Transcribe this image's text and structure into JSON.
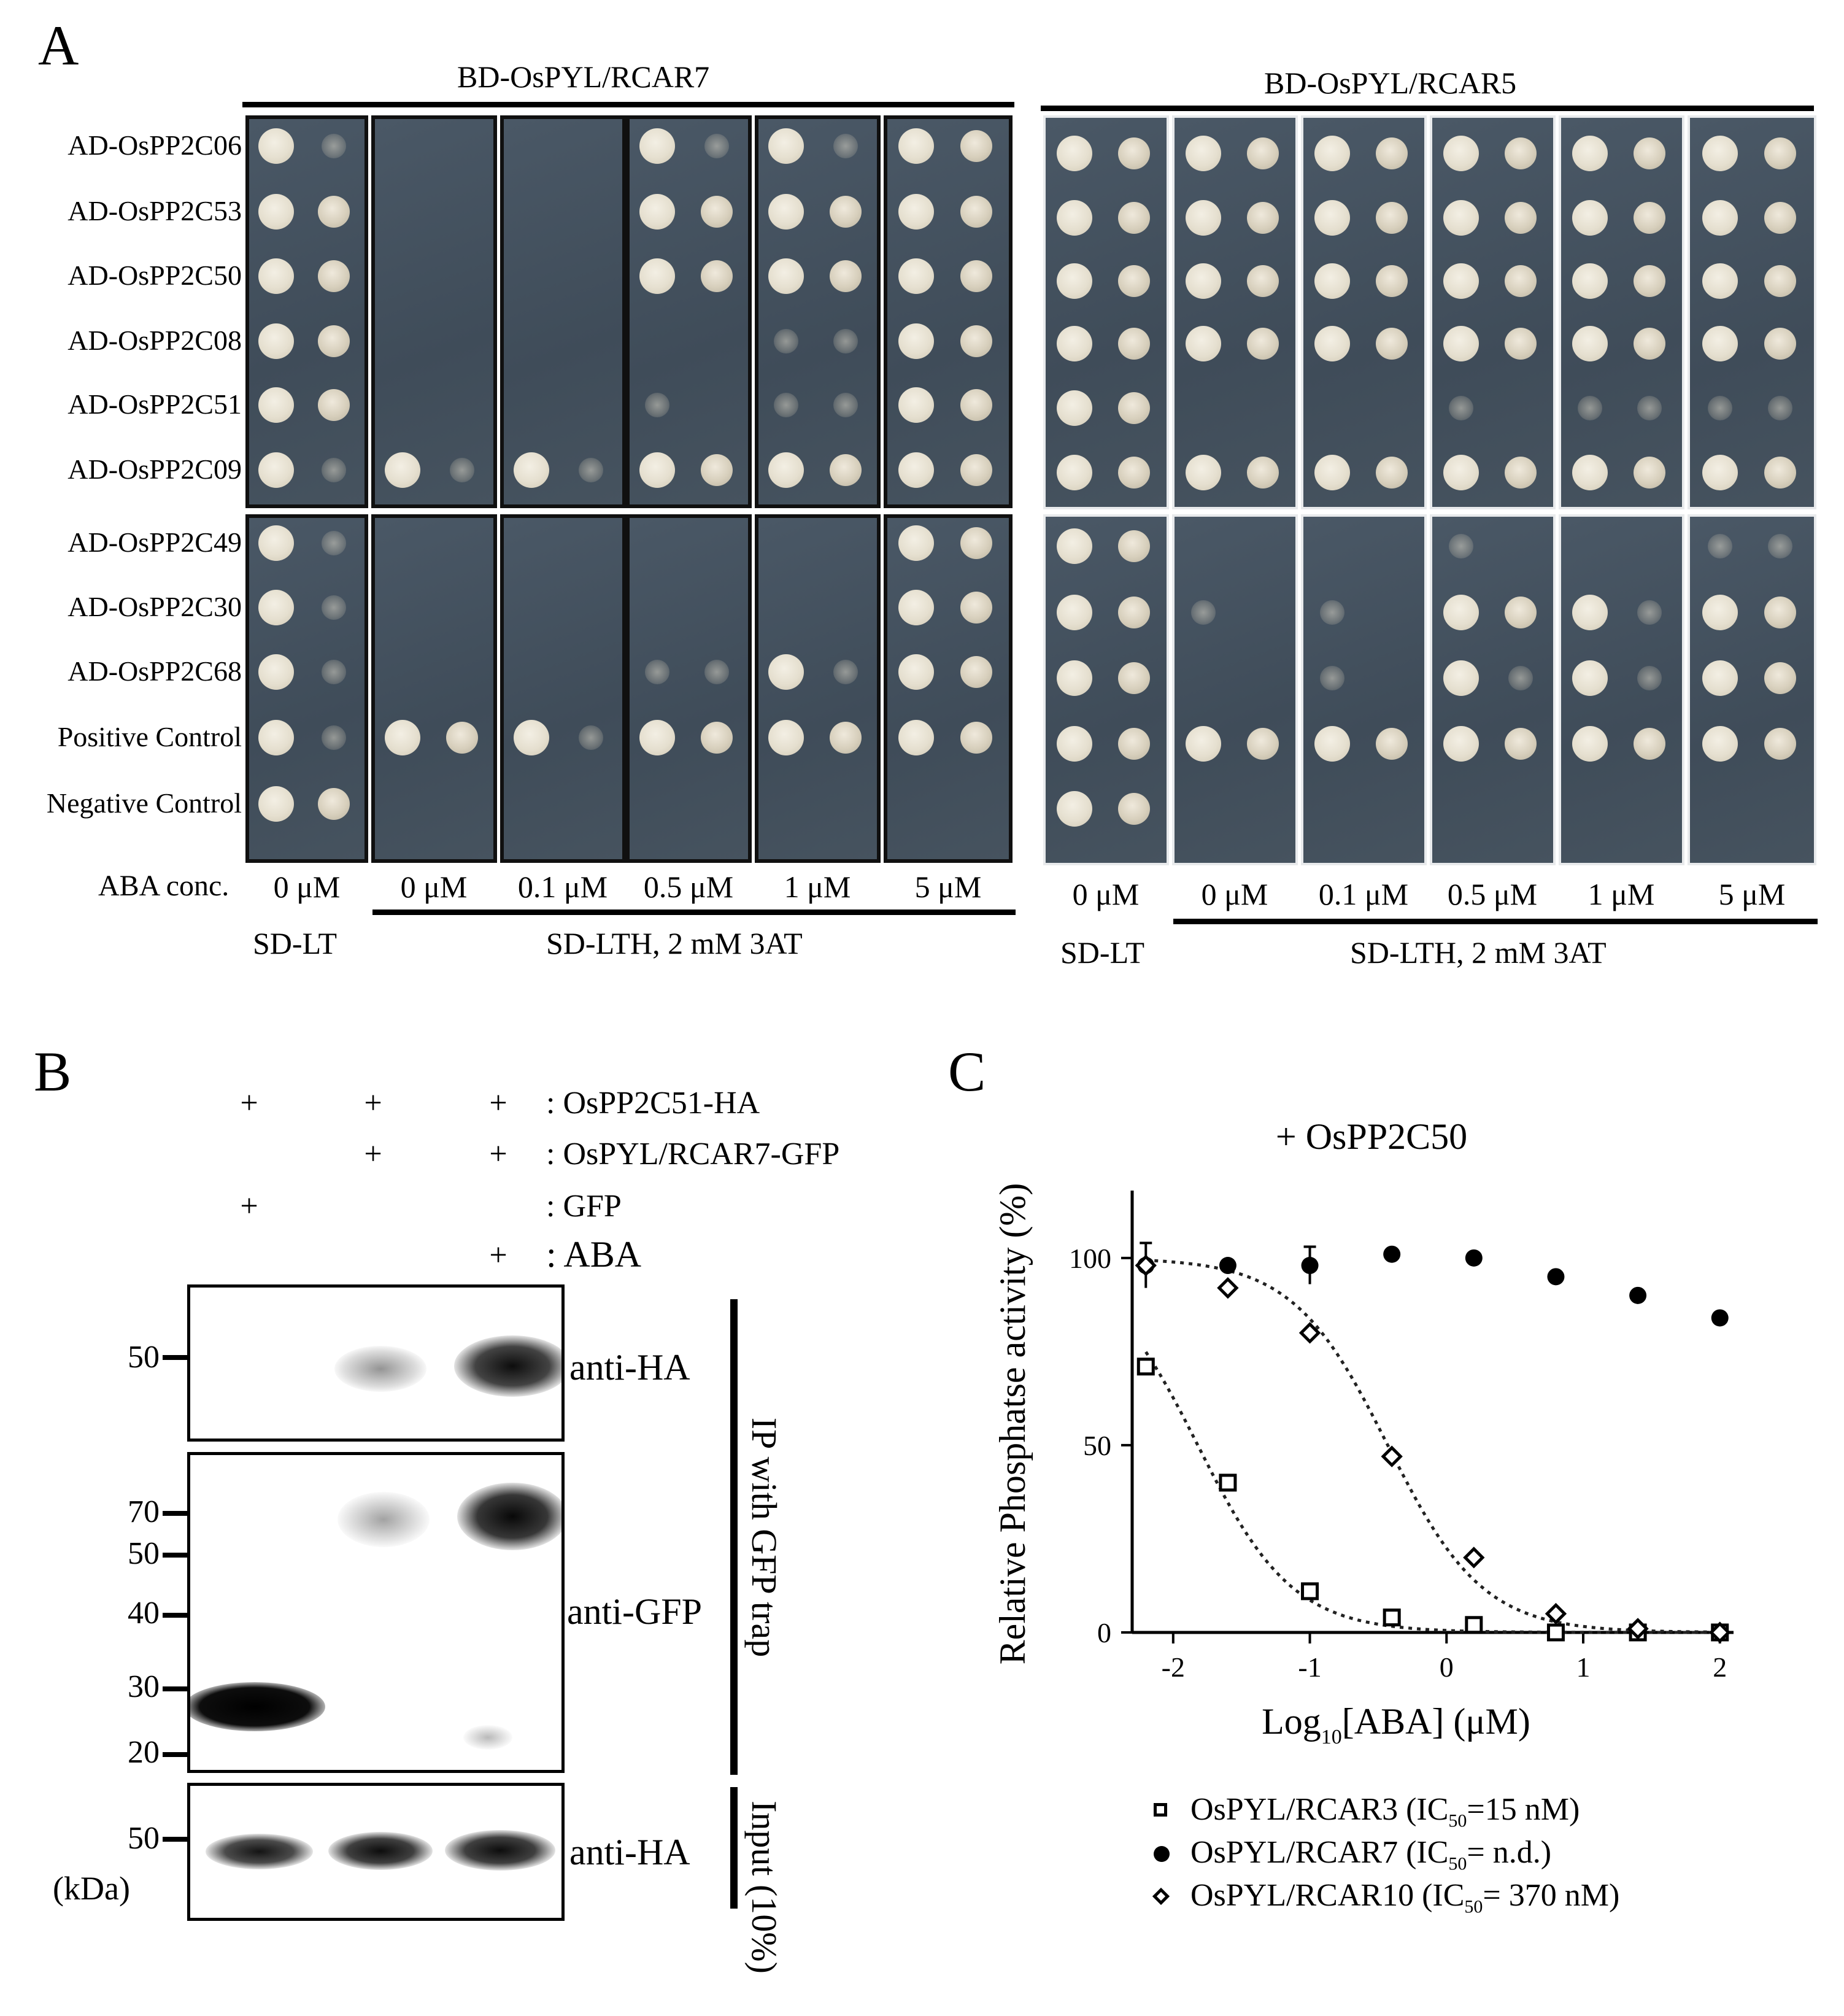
{
  "panel_a": {
    "letter": "A",
    "left_title": "BD-OsPYL/RCAR7",
    "right_title": "BD-OsPYL/RCAR5",
    "rows": [
      "AD-OsPP2C06",
      "AD-OsPP2C53",
      "AD-OsPP2C50",
      "AD-OsPP2C08",
      "AD-OsPP2C51",
      "AD-OsPP2C09",
      "AD-OsPP2C49",
      "AD-OsPP2C30",
      "AD-OsPP2C68",
      "Positive Control",
      "Negative Control"
    ],
    "aba_label": "ABA conc.",
    "concs": [
      "0 μM",
      "0 μM",
      "0.1 μM",
      "0.5 μM",
      "1 μM",
      "5 μM"
    ],
    "medium_lt": "SD-LT",
    "medium_lth": "SD-LTH, 2 mM 3AT",
    "left_growth": [
      [
        [
          2,
          1
        ],
        [
          0,
          0
        ],
        [
          0,
          0
        ],
        [
          2,
          1
        ],
        [
          2,
          1
        ],
        [
          2,
          2
        ]
      ],
      [
        [
          2,
          2
        ],
        [
          0,
          0
        ],
        [
          0,
          0
        ],
        [
          2,
          2
        ],
        [
          2,
          2
        ],
        [
          2,
          2
        ]
      ],
      [
        [
          2,
          2
        ],
        [
          0,
          0
        ],
        [
          0,
          0
        ],
        [
          2,
          2
        ],
        [
          2,
          2
        ],
        [
          2,
          2
        ]
      ],
      [
        [
          2,
          2
        ],
        [
          0,
          0
        ],
        [
          0,
          0
        ],
        [
          0,
          0
        ],
        [
          1,
          1
        ],
        [
          2,
          2
        ]
      ],
      [
        [
          2,
          2
        ],
        [
          0,
          0
        ],
        [
          0,
          0
        ],
        [
          1,
          0
        ],
        [
          1,
          1
        ],
        [
          2,
          2
        ]
      ],
      [
        [
          2,
          1
        ],
        [
          2,
          1
        ],
        [
          2,
          1
        ],
        [
          2,
          2
        ],
        [
          2,
          2
        ],
        [
          2,
          2
        ]
      ],
      [
        [
          2,
          1
        ],
        [
          0,
          0
        ],
        [
          0,
          0
        ],
        [
          0,
          0
        ],
        [
          0,
          0
        ],
        [
          2,
          2
        ]
      ],
      [
        [
          2,
          1
        ],
        [
          0,
          0
        ],
        [
          0,
          0
        ],
        [
          0,
          0
        ],
        [
          0,
          0
        ],
        [
          2,
          2
        ]
      ],
      [
        [
          2,
          1
        ],
        [
          0,
          0
        ],
        [
          0,
          0
        ],
        [
          1,
          1
        ],
        [
          2,
          1
        ],
        [
          2,
          2
        ]
      ],
      [
        [
          2,
          1
        ],
        [
          2,
          2
        ],
        [
          2,
          1
        ],
        [
          2,
          2
        ],
        [
          2,
          2
        ],
        [
          2,
          2
        ]
      ],
      [
        [
          2,
          2
        ],
        [
          0,
          0
        ],
        [
          0,
          0
        ],
        [
          0,
          0
        ],
        [
          0,
          0
        ],
        [
          0,
          0
        ]
      ]
    ],
    "right_growth": [
      [
        [
          2,
          2
        ],
        [
          2,
          2
        ],
        [
          2,
          2
        ],
        [
          2,
          2
        ],
        [
          2,
          2
        ],
        [
          2,
          2
        ]
      ],
      [
        [
          2,
          2
        ],
        [
          2,
          2
        ],
        [
          2,
          2
        ],
        [
          2,
          2
        ],
        [
          2,
          2
        ],
        [
          2,
          2
        ]
      ],
      [
        [
          2,
          2
        ],
        [
          2,
          2
        ],
        [
          2,
          2
        ],
        [
          2,
          2
        ],
        [
          2,
          2
        ],
        [
          2,
          2
        ]
      ],
      [
        [
          2,
          2
        ],
        [
          2,
          2
        ],
        [
          2,
          2
        ],
        [
          2,
          2
        ],
        [
          2,
          2
        ],
        [
          2,
          2
        ]
      ],
      [
        [
          2,
          2
        ],
        [
          0,
          0
        ],
        [
          0,
          0
        ],
        [
          1,
          0
        ],
        [
          1,
          1
        ],
        [
          1,
          1
        ]
      ],
      [
        [
          2,
          2
        ],
        [
          2,
          2
        ],
        [
          2,
          2
        ],
        [
          2,
          2
        ],
        [
          2,
          2
        ],
        [
          2,
          2
        ]
      ],
      [
        [
          2,
          2
        ],
        [
          0,
          0
        ],
        [
          0,
          0
        ],
        [
          1,
          0
        ],
        [
          0,
          0
        ],
        [
          1,
          1
        ]
      ],
      [
        [
          2,
          2
        ],
        [
          1,
          0
        ],
        [
          1,
          0
        ],
        [
          2,
          2
        ],
        [
          2,
          1
        ],
        [
          2,
          2
        ]
      ],
      [
        [
          2,
          2
        ],
        [
          0,
          0
        ],
        [
          1,
          0
        ],
        [
          2,
          1
        ],
        [
          2,
          1
        ],
        [
          2,
          2
        ]
      ],
      [
        [
          2,
          2
        ],
        [
          2,
          2
        ],
        [
          2,
          2
        ],
        [
          2,
          2
        ],
        [
          2,
          2
        ],
        [
          2,
          2
        ]
      ],
      [
        [
          2,
          2
        ],
        [
          0,
          0
        ],
        [
          0,
          0
        ],
        [
          0,
          0
        ],
        [
          0,
          0
        ],
        [
          0,
          0
        ]
      ]
    ]
  },
  "panel_b": {
    "letter": "B",
    "conditions": [
      {
        "label": ": OsPP2C51-HA",
        "marks": [
          "+",
          "+",
          "+"
        ]
      },
      {
        "label": ": OsPYL/RCAR7-GFP",
        "marks": [
          "",
          "+",
          "+"
        ]
      },
      {
        "label": ": GFP",
        "marks": [
          "+",
          "",
          ""
        ]
      },
      {
        "label": ": ABA",
        "marks": [
          "",
          "",
          "+"
        ]
      }
    ],
    "blot1_label": "anti-HA",
    "blot2_label": "anti-GFP",
    "blot3_label": "anti-HA",
    "ip_label": "IP with GFP trap",
    "input_label": "Input (10%)",
    "markers_blot1": [
      "50"
    ],
    "markers_blot2": [
      "70",
      "50",
      "40",
      "30",
      "20"
    ],
    "markers_blot3": [
      "50"
    ],
    "unit": "(kDa)"
  },
  "panel_c": {
    "letter": "C",
    "chart_data": {
      "type": "scatter",
      "title": "+ OsPP2C50",
      "xlabel_main": "Log",
      "xlabel_sub": "10",
      "xlabel_rest": "[ABA] (μM)",
      "ylabel": "Relative Phosphatse activity (%)",
      "xlim": [
        -2.3,
        2.1
      ],
      "ylim": [
        0,
        118
      ],
      "xticks": [
        -2,
        -1,
        0,
        1,
        2
      ],
      "yticks": [
        0,
        50,
        100
      ],
      "series": [
        {
          "name": "OsPYL/RCAR3",
          "ic50_text": "15 nM",
          "marker": "square",
          "x": [
            -2.2,
            -1.6,
            -1.0,
            -0.4,
            0.2,
            0.8,
            1.4,
            2.0
          ],
          "y": [
            71,
            40,
            11,
            4,
            2,
            0,
            0,
            0
          ],
          "fit_log_ic50": -1.82,
          "fit": true
        },
        {
          "name": "OsPYL/RCAR7",
          "ic50_text": "n.d.",
          "marker": "circle",
          "x": [
            -2.2,
            -1.6,
            -1.0,
            -0.4,
            0.2,
            0.8,
            1.4,
            2.0
          ],
          "y": [
            98,
            98,
            98,
            101,
            100,
            95,
            90,
            84
          ],
          "err": [
            6,
            0,
            5,
            0,
            0,
            0,
            0,
            0
          ],
          "fit": false
        },
        {
          "name": "OsPYL/RCAR10",
          "ic50_text": "370 nM",
          "marker": "diamond",
          "x": [
            -2.2,
            -1.6,
            -1.0,
            -0.4,
            0.2,
            0.8,
            1.4,
            2.0
          ],
          "y": [
            98,
            92,
            80,
            47,
            20,
            5,
            1,
            0
          ],
          "fit_log_ic50": -0.43,
          "fit": true
        }
      ]
    },
    "legend": [
      {
        "prefix": "OsPYL/RCAR3 (IC",
        "sub": "50",
        "suffix": "=15 nM)"
      },
      {
        "prefix": "OsPYL/RCAR7 (IC",
        "sub": "50",
        "suffix": "= n.d.)"
      },
      {
        "prefix": "OsPYL/RCAR10 (IC",
        "sub": "50",
        "suffix": "= 370 nM)"
      }
    ]
  }
}
